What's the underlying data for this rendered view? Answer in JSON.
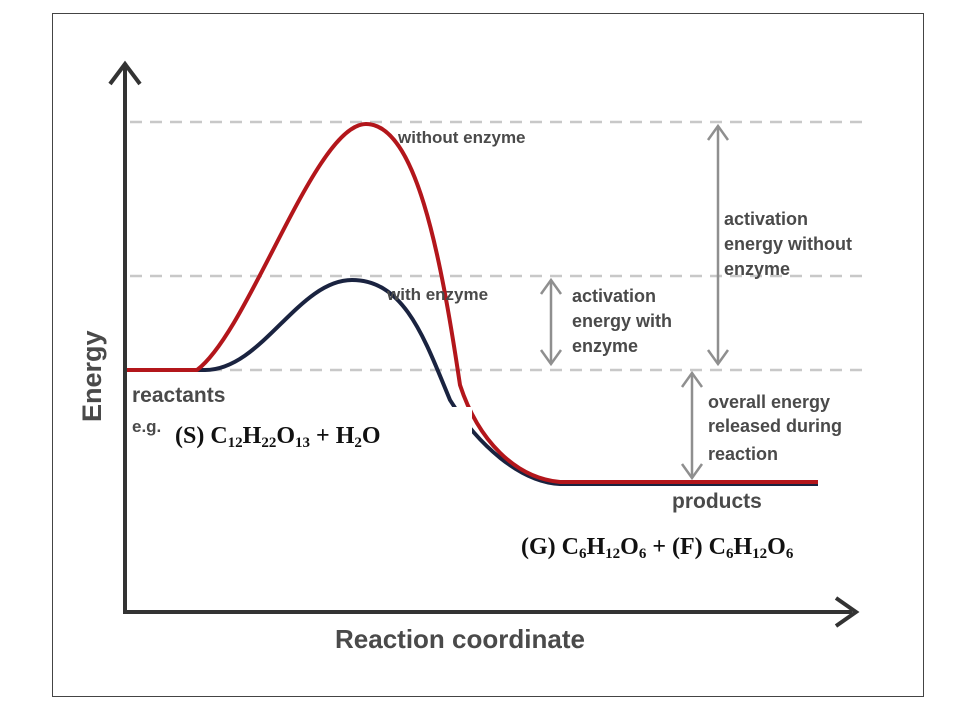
{
  "colors": {
    "without_enzyme": "#b3161b",
    "with_enzyme": "#1a2340",
    "reference_lines": "#c8c8c8",
    "arrows": "#8f8f8f",
    "axes": "#333333",
    "text": "#4a4a4a"
  },
  "diagram": {
    "axis_y_label": "Energy",
    "axis_x_label": "Reaction coordinate",
    "curve_without_label": "without enzyme",
    "curve_with_label": "with enzyme",
    "reactants_label": "reactants",
    "example_prefix": "e.g.",
    "products_label": "products",
    "activation_without": [
      "activation",
      "energy without",
      "enzyme"
    ],
    "activation_with": [
      "activation",
      "energy with",
      "enzyme"
    ],
    "overall_energy": [
      "overall energy",
      "released during",
      "reaction"
    ]
  },
  "formulas": {
    "reactant": {
      "prefix": "(S) C",
      "c_sub": "12",
      "h": "H",
      "h_sub": "22",
      "o": "O",
      "o_sub": "13",
      "plus": " + H",
      "water_sub": "2",
      "water_o": "O"
    },
    "product": {
      "g_prefix": "(G) C",
      "c1_sub": "6",
      "h1": "H",
      "h1_sub": "12",
      "o1": "O",
      "o1_sub": "6",
      "f_prefix": " + (F) C",
      "c2_sub": "6",
      "h2": "H",
      "h2_sub": "12",
      "o2": "O",
      "o2_sub": "6"
    }
  }
}
